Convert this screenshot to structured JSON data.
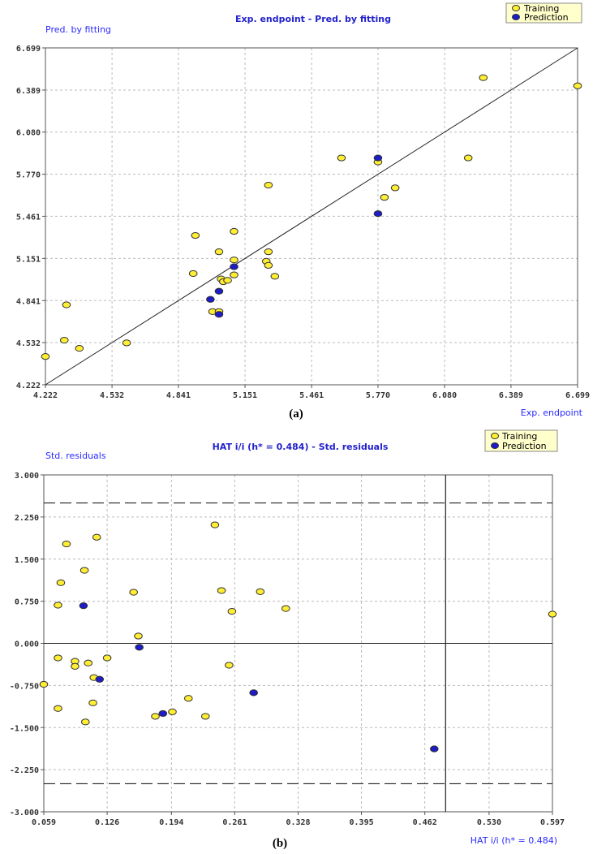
{
  "colors": {
    "training": "#ffee33",
    "prediction": "#1c1cc8",
    "point_stroke": "#333333",
    "title": "#2222cc",
    "axis_label": "#2a2aff",
    "grid": "#bbbbbb"
  },
  "chart_data": [
    {
      "type": "scatter",
      "panel_label": "(a)",
      "title": "Exp. endpoint - Pred. by fitting",
      "xlabel": "Exp. endpoint",
      "ylabel": "Pred. by fitting",
      "xlim": [
        4.222,
        6.699
      ],
      "ylim": [
        4.222,
        6.699
      ],
      "xticks": [
        "4.222",
        "4.532",
        "4.841",
        "5.151",
        "5.461",
        "5.770",
        "6.080",
        "6.389",
        "6.699"
      ],
      "yticks": [
        "4.222",
        "4.532",
        "4.841",
        "5.151",
        "5.461",
        "5.770",
        "6.080",
        "6.389",
        "6.699"
      ],
      "grid": true,
      "legend": {
        "position": "top-right",
        "entries": [
          "Training",
          "Prediction"
        ]
      },
      "reference_line": {
        "type": "identity",
        "from": [
          4.222,
          4.222
        ],
        "to": [
          6.699,
          6.699
        ]
      },
      "series": [
        {
          "name": "Training",
          "color": "#ffee33",
          "points": [
            [
              4.222,
              4.43
            ],
            [
              4.32,
              4.81
            ],
            [
              4.31,
              4.55
            ],
            [
              4.38,
              4.49
            ],
            [
              4.6,
              4.53
            ],
            [
              4.92,
              5.32
            ],
            [
              4.91,
              5.04
            ],
            [
              5.0,
              4.76
            ],
            [
              5.03,
              4.76
            ],
            [
              5.03,
              5.2
            ],
            [
              5.04,
              5.0
            ],
            [
              5.05,
              4.98
            ],
            [
              5.07,
              4.99
            ],
            [
              5.1,
              5.35
            ],
            [
              5.1,
              5.14
            ],
            [
              5.1,
              5.03
            ],
            [
              5.26,
              5.69
            ],
            [
              5.26,
              5.2
            ],
            [
              5.25,
              5.13
            ],
            [
              5.26,
              5.1
            ],
            [
              5.29,
              5.02
            ],
            [
              5.6,
              5.89
            ],
            [
              5.77,
              5.86
            ],
            [
              5.8,
              5.6
            ],
            [
              5.85,
              5.67
            ],
            [
              6.19,
              5.89
            ],
            [
              6.26,
              6.48
            ],
            [
              6.699,
              6.42
            ]
          ]
        },
        {
          "name": "Prediction",
          "color": "#1c1cc8",
          "points": [
            [
              4.99,
              4.85
            ],
            [
              5.03,
              4.91
            ],
            [
              5.03,
              4.74
            ],
            [
              5.1,
              5.09
            ],
            [
              5.77,
              5.89
            ],
            [
              5.77,
              5.48
            ]
          ]
        }
      ]
    },
    {
      "type": "scatter",
      "panel_label": "(b)",
      "title": "HAT i/i (h* = 0.484) - Std. residuals",
      "xlabel": "HAT i/i (h* = 0.484)",
      "ylabel": "Std. residuals",
      "xlim": [
        0.059,
        0.597
      ],
      "ylim": [
        -3.0,
        3.0
      ],
      "xticks": [
        "0.059",
        "0.126",
        "0.194",
        "0.261",
        "0.328",
        "0.395",
        "0.462",
        "0.530",
        "0.597"
      ],
      "yticks": [
        "3.000",
        "2.250",
        "1.500",
        "0.750",
        "0.000",
        "-0.750",
        "-1.500",
        "-2.250",
        "-3.000"
      ],
      "grid": true,
      "legend": {
        "position": "top-right",
        "entries": [
          "Training",
          "Prediction"
        ]
      },
      "reference_lines": {
        "horizontal_dashed": [
          2.5,
          -2.5
        ],
        "horizontal_solid": [
          0.0
        ],
        "vertical_solid_hat_star": 0.484
      },
      "series": [
        {
          "name": "Training",
          "color": "#ffee33",
          "points": [
            [
              0.059,
              -0.73
            ],
            [
              0.074,
              0.68
            ],
            [
              0.074,
              -0.26
            ],
            [
              0.074,
              -1.16
            ],
            [
              0.077,
              1.08
            ],
            [
              0.083,
              1.77
            ],
            [
              0.092,
              -0.32
            ],
            [
              0.092,
              -0.41
            ],
            [
              0.102,
              1.3
            ],
            [
              0.103,
              -1.4
            ],
            [
              0.106,
              -0.35
            ],
            [
              0.111,
              -1.06
            ],
            [
              0.112,
              -0.61
            ],
            [
              0.115,
              1.89
            ],
            [
              0.126,
              -0.26
            ],
            [
              0.154,
              0.91
            ],
            [
              0.159,
              0.13
            ],
            [
              0.177,
              -1.3
            ],
            [
              0.195,
              -1.22
            ],
            [
              0.212,
              -0.98
            ],
            [
              0.23,
              -1.3
            ],
            [
              0.24,
              2.11
            ],
            [
              0.247,
              0.94
            ],
            [
              0.255,
              -0.39
            ],
            [
              0.258,
              0.57
            ],
            [
              0.288,
              0.92
            ],
            [
              0.315,
              0.62
            ],
            [
              0.597,
              0.52
            ]
          ]
        },
        {
          "name": "Prediction",
          "color": "#1c1cc8",
          "points": [
            [
              0.101,
              0.67
            ],
            [
              0.118,
              -0.64
            ],
            [
              0.16,
              -0.07
            ],
            [
              0.185,
              -1.25
            ],
            [
              0.281,
              -0.88
            ],
            [
              0.472,
              -1.88
            ]
          ]
        }
      ]
    }
  ]
}
